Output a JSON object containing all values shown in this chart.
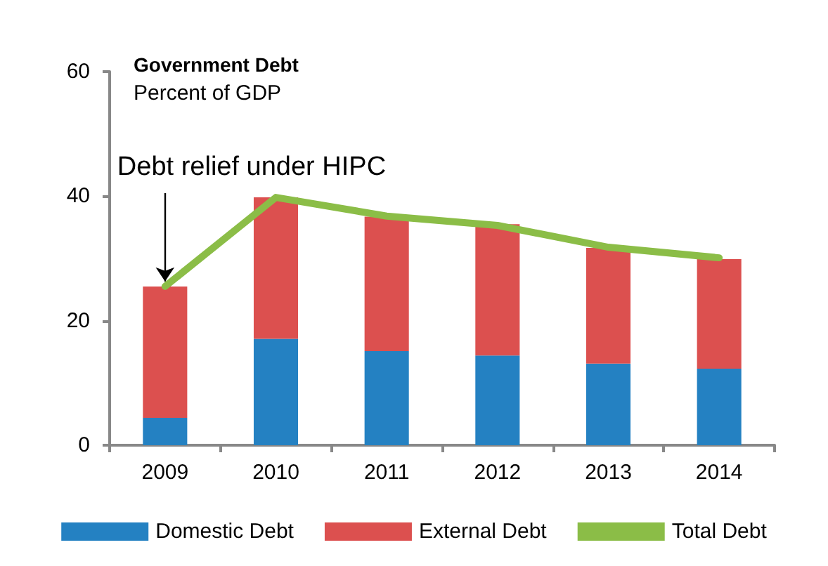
{
  "chart_data": {
    "type": "bar",
    "title": "Government Debt",
    "subtitle": "Percent of GDP",
    "stacked": true,
    "categories": [
      "2009",
      "2010",
      "2011",
      "2012",
      "2013",
      "2014"
    ],
    "series": [
      {
        "name": "Domestic Debt",
        "color": "#2481c2",
        "values": [
          4.4,
          17.1,
          15.1,
          14.4,
          13.1,
          12.3
        ]
      },
      {
        "name": "External Debt",
        "color": "#dc504f",
        "values": [
          21.1,
          22.7,
          21.6,
          21.1,
          18.6,
          17.6
        ]
      },
      {
        "name": "Total Debt",
        "type": "line",
        "color": "#8bbd47",
        "values": [
          25.5,
          39.8,
          36.8,
          35.3,
          31.8,
          30.1
        ]
      }
    ],
    "annotations": [
      {
        "text": "Debt relief under HIPC",
        "x": "2009",
        "y": 25.5
      }
    ],
    "ylim": [
      0,
      60
    ],
    "yticks": [
      0,
      20,
      40,
      60
    ],
    "grid": false,
    "legend": "bottom",
    "marker": "none",
    "line_style": "solid"
  }
}
